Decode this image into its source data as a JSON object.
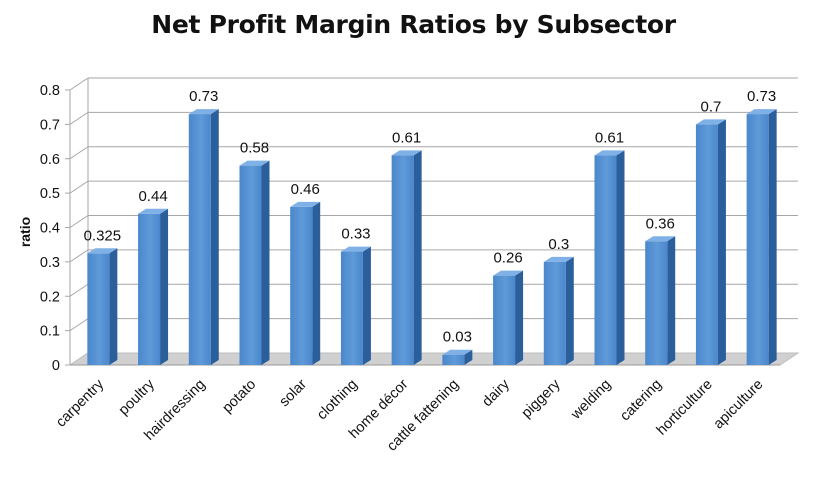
{
  "chart_data": {
    "type": "bar",
    "title": "Net Profit Margin Ratios by Subsector",
    "xlabel": "",
    "ylabel": "ratio",
    "categories": [
      "carpentry",
      "poultry",
      "hairdressing",
      "potato",
      "solar",
      "clothing",
      "home décor",
      "cattle fattening",
      "dairy",
      "piggery",
      "welding",
      "catering",
      "horticulture",
      "apiculture"
    ],
    "values": [
      0.325,
      0.44,
      0.73,
      0.58,
      0.46,
      0.33,
      0.61,
      0.03,
      0.26,
      0.3,
      0.61,
      0.36,
      0.7,
      0.73
    ],
    "value_labels": [
      "0.325",
      "0.44",
      "0.73",
      "0.58",
      "0.46",
      "0.33",
      "0.61",
      "0.03",
      "0.26",
      "0.3",
      "0.61",
      "0.36",
      "0.7",
      "0.73"
    ],
    "yticks": [
      "0",
      "0.1",
      "0.2",
      "0.3",
      "0.4",
      "0.5",
      "0.6",
      "0.7",
      "0.8"
    ],
    "ylim": [
      0,
      0.8
    ],
    "grid": true,
    "style": "3d-column",
    "colors": {
      "bar_front": "#4a87cc",
      "bar_front_light": "#5f9ad8",
      "bar_side": "#2b5f9c",
      "bar_top": "#7fb0e6",
      "grid": "#a6a6a6",
      "floor": "#d0d0d0"
    }
  }
}
